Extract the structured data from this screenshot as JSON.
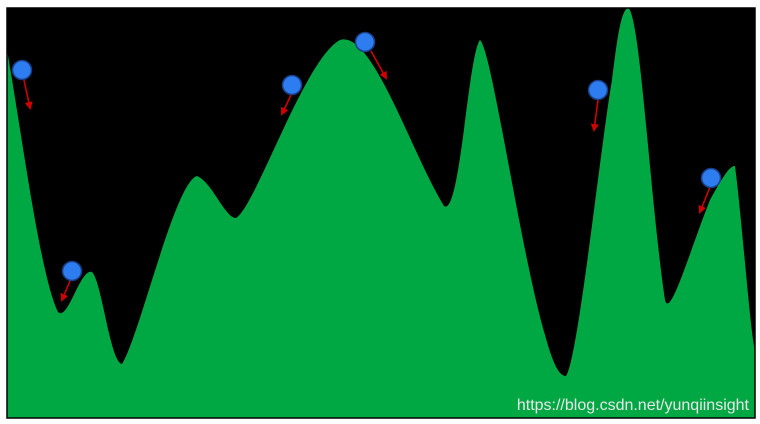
{
  "diagram": {
    "colors": {
      "background": "#000000",
      "terrain": "#00a844",
      "ball": "#2d7cf0",
      "ball_stroke": "#1a3f86",
      "arrow": "#d10000",
      "frame": "#000000"
    },
    "elements": {
      "terrain": "green-terrain",
      "balls": "blue-balls",
      "arrows": "red-gradient-arrows"
    }
  },
  "watermark": {
    "text": "https://blog.csdn.net/yunqiinsight"
  }
}
